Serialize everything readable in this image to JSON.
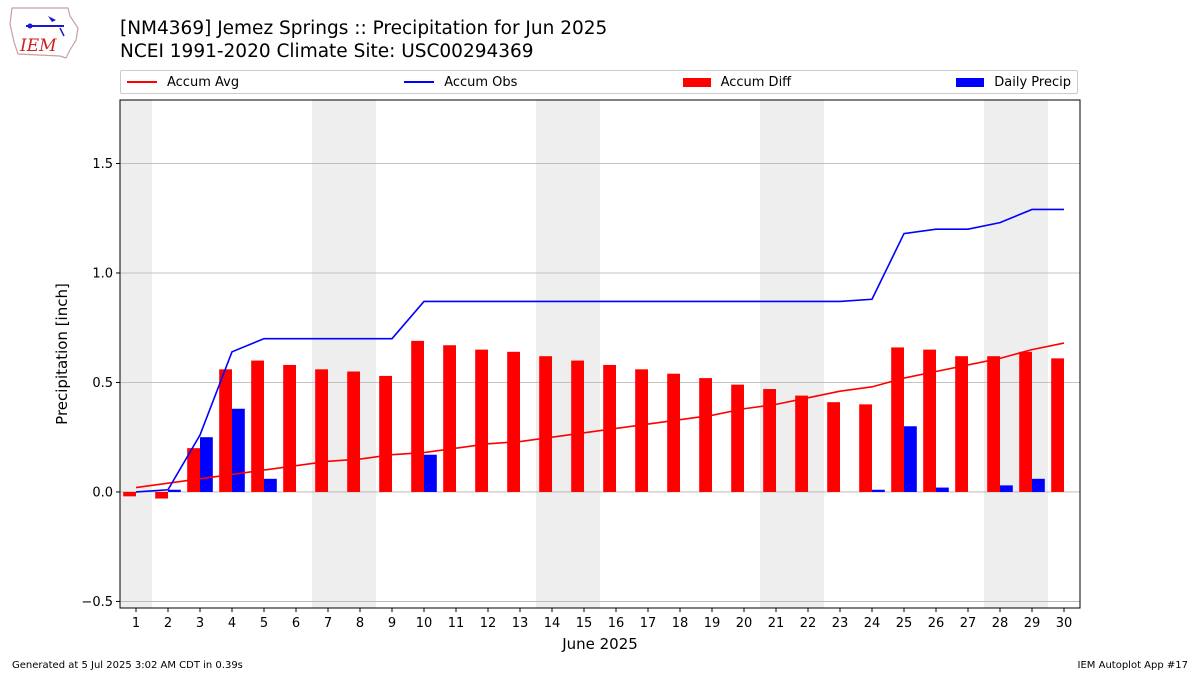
{
  "header": {
    "title_line1": "[NM4369] Jemez Springs :: Precipitation for Jun 2025",
    "title_line2": "NCEI 1991-2020 Climate Site: USC00294369"
  },
  "logo": {
    "text": "IEM",
    "icon": "iem-logo-icon"
  },
  "legend": [
    {
      "label": "Accum Avg",
      "kind": "line",
      "color": "#ff0000"
    },
    {
      "label": "Accum Obs",
      "kind": "line",
      "color": "#0000ff"
    },
    {
      "label": "Accum Diff",
      "kind": "bar",
      "color": "#ff0000"
    },
    {
      "label": "Daily Precip",
      "kind": "bar",
      "color": "#0000ff"
    }
  ],
  "footer": {
    "generated": "Generated at 5 Jul 2025 3:02 AM CDT in 0.39s",
    "app": "IEM Autoplot App #17"
  },
  "chart_data": {
    "type": "bar",
    "xlabel": "June 2025",
    "ylabel": "Precipitation [inch]",
    "ylim": [
      -0.53,
      1.79
    ],
    "yticks": [
      -0.5,
      0.0,
      0.5,
      1.0,
      1.5
    ],
    "ytick_labels": [
      "−0.5",
      "0.0",
      "0.5",
      "1.0",
      "1.5"
    ],
    "grid": true,
    "weekend_shading_days": [
      1,
      7,
      8,
      14,
      15,
      21,
      22,
      28,
      29
    ],
    "categories": [
      "1",
      "2",
      "3",
      "4",
      "5",
      "6",
      "7",
      "8",
      "9",
      "10",
      "11",
      "12",
      "13",
      "14",
      "15",
      "16",
      "17",
      "18",
      "19",
      "20",
      "21",
      "22",
      "23",
      "24",
      "25",
      "26",
      "27",
      "28",
      "29",
      "30"
    ],
    "series": [
      {
        "name": "Accum Avg",
        "type": "line",
        "color": "#ff0000",
        "values": [
          0.02,
          0.04,
          0.06,
          0.08,
          0.1,
          0.12,
          0.14,
          0.15,
          0.17,
          0.18,
          0.2,
          0.22,
          0.23,
          0.25,
          0.27,
          0.29,
          0.31,
          0.33,
          0.35,
          0.38,
          0.4,
          0.43,
          0.46,
          0.48,
          0.52,
          0.55,
          0.58,
          0.61,
          0.65,
          0.68
        ]
      },
      {
        "name": "Accum Obs",
        "type": "line",
        "color": "#0000ff",
        "values": [
          0.0,
          0.01,
          0.26,
          0.64,
          0.7,
          0.7,
          0.7,
          0.7,
          0.7,
          0.87,
          0.87,
          0.87,
          0.87,
          0.87,
          0.87,
          0.87,
          0.87,
          0.87,
          0.87,
          0.87,
          0.87,
          0.87,
          0.87,
          0.88,
          1.18,
          1.2,
          1.2,
          1.23,
          1.29,
          1.29
        ]
      },
      {
        "name": "Accum Diff",
        "type": "bar",
        "color": "#ff0000",
        "values": [
          -0.02,
          -0.03,
          0.2,
          0.56,
          0.6,
          0.58,
          0.56,
          0.55,
          0.53,
          0.69,
          0.67,
          0.65,
          0.64,
          0.62,
          0.6,
          0.58,
          0.56,
          0.54,
          0.52,
          0.49,
          0.47,
          0.44,
          0.41,
          0.4,
          0.66,
          0.65,
          0.62,
          0.62,
          0.64,
          0.61
        ]
      },
      {
        "name": "Daily Precip",
        "type": "bar",
        "color": "#0000ff",
        "values": [
          0.0,
          0.01,
          0.25,
          0.38,
          0.06,
          0,
          0,
          0,
          0,
          0.17,
          0,
          0,
          0,
          0,
          0,
          0,
          0,
          0,
          0,
          0,
          0,
          0,
          0,
          0.01,
          0.3,
          0.02,
          0,
          0.03,
          0.06,
          0
        ]
      }
    ]
  }
}
